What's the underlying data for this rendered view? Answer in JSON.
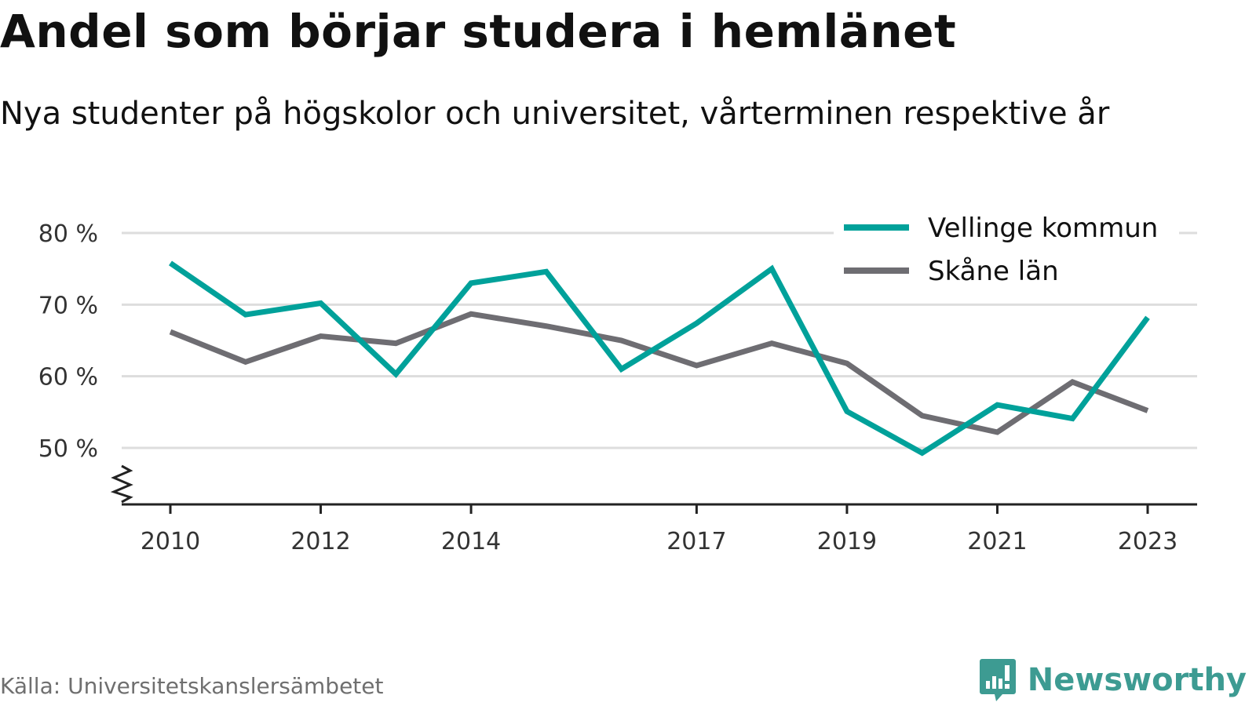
{
  "header": {
    "title": "Andel som börjar studera i hemlänet",
    "subtitle": "Nya studenter på högskolor och universitet, vårterminen respektive år"
  },
  "footer": {
    "source": "Källa: Universitetskanslersämbetet",
    "brand": "Newsworthy"
  },
  "colors": {
    "vellinge": "#00a19a",
    "skane": "#6e6d72",
    "grid": "#dddddd",
    "axis": "#222222",
    "brand": "#3d9b92"
  },
  "chart_data": {
    "type": "line",
    "title": "Andel som börjar studera i hemlänet",
    "subtitle": "Nya studenter på högskolor och universitet, vårterminen respektive år",
    "x": [
      2010,
      2011,
      2012,
      2013,
      2014,
      2015,
      2016,
      2017,
      2018,
      2019,
      2020,
      2021,
      2022,
      2023
    ],
    "x_tick_labels": [
      "2010",
      "2012",
      "2014",
      "2017",
      "2019",
      "2021",
      "2023"
    ],
    "y_tick_labels": [
      "80 %",
      "70 %",
      "60 %",
      "50 %"
    ],
    "y_ticks": [
      80,
      70,
      60,
      50
    ],
    "ylim": [
      42,
      83
    ],
    "y_axis_break": true,
    "grid": "horizontal",
    "legend_position": "top-right",
    "series": [
      {
        "name": "Vellinge kommun",
        "color": "#00a19a",
        "values": [
          75.8,
          68.6,
          70.2,
          60.3,
          73.0,
          74.6,
          61.0,
          67.4,
          75.0,
          55.1,
          49.3,
          56.0,
          54.1,
          68.2
        ]
      },
      {
        "name": "Skåne län",
        "color": "#6e6d72",
        "values": [
          66.2,
          62.0,
          65.6,
          64.6,
          68.7,
          67.0,
          65.0,
          61.5,
          64.6,
          61.8,
          54.5,
          52.2,
          59.2,
          55.2
        ]
      }
    ]
  }
}
